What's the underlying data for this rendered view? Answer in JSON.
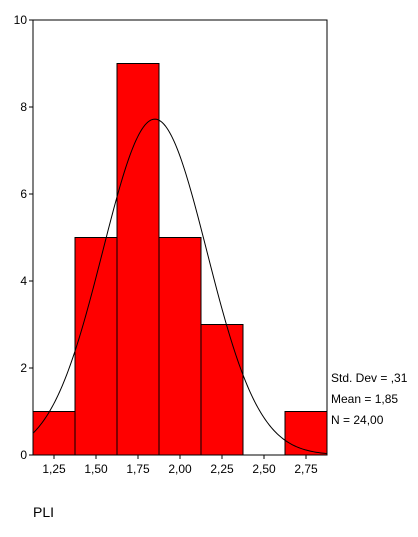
{
  "chart_data": {
    "type": "bar",
    "subtype": "histogram",
    "bins": [
      {
        "x_start": 1.125,
        "x_end": 1.375,
        "count": 1
      },
      {
        "x_start": 1.375,
        "x_end": 1.625,
        "count": 5
      },
      {
        "x_start": 1.625,
        "x_end": 1.875,
        "count": 9
      },
      {
        "x_start": 1.875,
        "x_end": 2.125,
        "count": 5
      },
      {
        "x_start": 2.125,
        "x_end": 2.375,
        "count": 3
      },
      {
        "x_start": 2.375,
        "x_end": 2.625,
        "count": 0
      },
      {
        "x_start": 2.625,
        "x_end": 2.875,
        "count": 1
      }
    ],
    "x_tick_labels": [
      "1,25",
      "1,50",
      "1,75",
      "2,00",
      "2,25",
      "2,50",
      "2,75"
    ],
    "x_ticks": [
      1.25,
      1.5,
      1.75,
      2.0,
      2.25,
      2.5,
      2.75
    ],
    "y_tick_labels": [
      "0",
      "2",
      "4",
      "6",
      "8",
      "10"
    ],
    "y_ticks": [
      0,
      2,
      4,
      6,
      8,
      10
    ],
    "xlim": [
      1.125,
      2.875
    ],
    "ylim": [
      0,
      10
    ],
    "xlabel": "PLI",
    "ylabel": "",
    "title": "",
    "normal_curve": {
      "mean": 1.85,
      "std_dev": 0.31,
      "n": 24,
      "bin_width": 0.25
    },
    "stats_labels": [
      "Std. Dev = ,31",
      "Mean = 1,85",
      "N = 24,00"
    ],
    "bar_color": "#ff0000",
    "grid": false
  }
}
